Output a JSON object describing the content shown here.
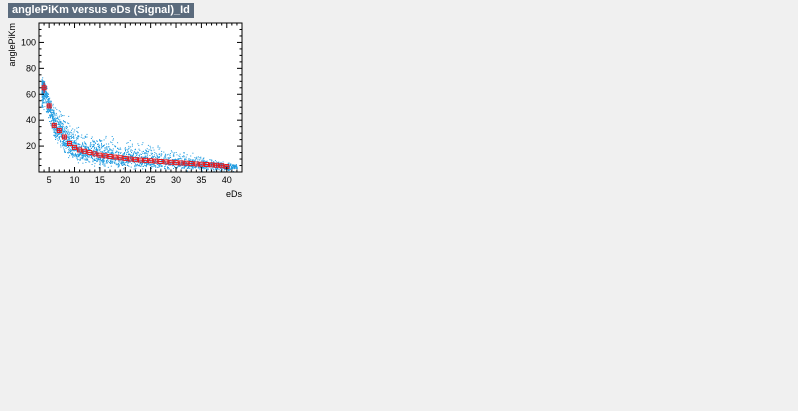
{
  "title": "anglePiKm versus eDs (Signal)_Id",
  "chart_data": {
    "type": "scatter",
    "xlabel": "eDs",
    "ylabel": "anglePiKm",
    "xlim": [
      3,
      43
    ],
    "ylim": [
      0,
      115
    ],
    "x_ticks": [
      5,
      10,
      15,
      20,
      25,
      30,
      35,
      40
    ],
    "y_ticks": [
      20,
      40,
      60,
      80,
      100
    ],
    "grid": false,
    "legend": "none",
    "colors": {
      "scatter": "#1e9be0",
      "profile": "#e8161b",
      "frame": "#000000",
      "plot_bg": "#ffffff",
      "title_bg": "#5b6b7d",
      "canvas_bg": "#f0f0f0"
    },
    "profile": {
      "x": [
        4,
        5,
        6,
        7,
        8,
        9,
        10,
        11,
        12,
        13,
        14,
        15,
        16,
        17,
        18,
        19,
        20,
        21,
        22,
        23,
        24,
        25,
        26,
        27,
        28,
        29,
        30,
        31,
        32,
        33,
        34,
        35,
        36,
        37,
        38,
        39,
        40
      ],
      "y": [
        65,
        51,
        36,
        32,
        27,
        22,
        19,
        17,
        16,
        15,
        14,
        13,
        12.5,
        12,
        11.5,
        11,
        10.5,
        10,
        9.5,
        9.2,
        9,
        8.7,
        8.4,
        8.1,
        7.8,
        7.5,
        7.2,
        7,
        6.8,
        6.5,
        6.2,
        6,
        5.8,
        5.5,
        5.2,
        4.8,
        4.2
      ],
      "y_err": [
        4,
        2,
        1.5,
        1.2,
        1,
        0.8,
        0.6,
        0.5,
        0.4,
        0.4,
        0.3,
        0.3,
        0.3,
        0.3,
        0.3,
        0.3,
        0.3,
        0.3,
        0.3,
        0.3,
        0.3,
        0.3,
        0.3,
        0.3,
        0.3,
        0.3,
        0.3,
        0.3,
        0.3,
        0.4,
        0.4,
        0.5,
        0.6,
        0.8,
        1.2,
        1,
        1.5
      ]
    },
    "scatter_band": {
      "x_min": 3.5,
      "x_max": 42,
      "note_upper_envelope": [
        [
          4,
          75
        ],
        [
          5,
          60
        ],
        [
          6,
          55
        ],
        [
          8,
          48
        ],
        [
          10,
          40
        ],
        [
          12,
          36
        ],
        [
          15,
          32
        ],
        [
          20,
          28
        ],
        [
          25,
          24
        ],
        [
          30,
          18
        ],
        [
          35,
          14
        ],
        [
          40,
          9
        ],
        [
          42,
          7
        ]
      ],
      "note_lower_envelope": [
        [
          4,
          45
        ],
        [
          5,
          30
        ],
        [
          6,
          22
        ],
        [
          8,
          12
        ],
        [
          10,
          6
        ],
        [
          12,
          4
        ],
        [
          15,
          2
        ],
        [
          20,
          1
        ],
        [
          40,
          0
        ]
      ]
    }
  }
}
